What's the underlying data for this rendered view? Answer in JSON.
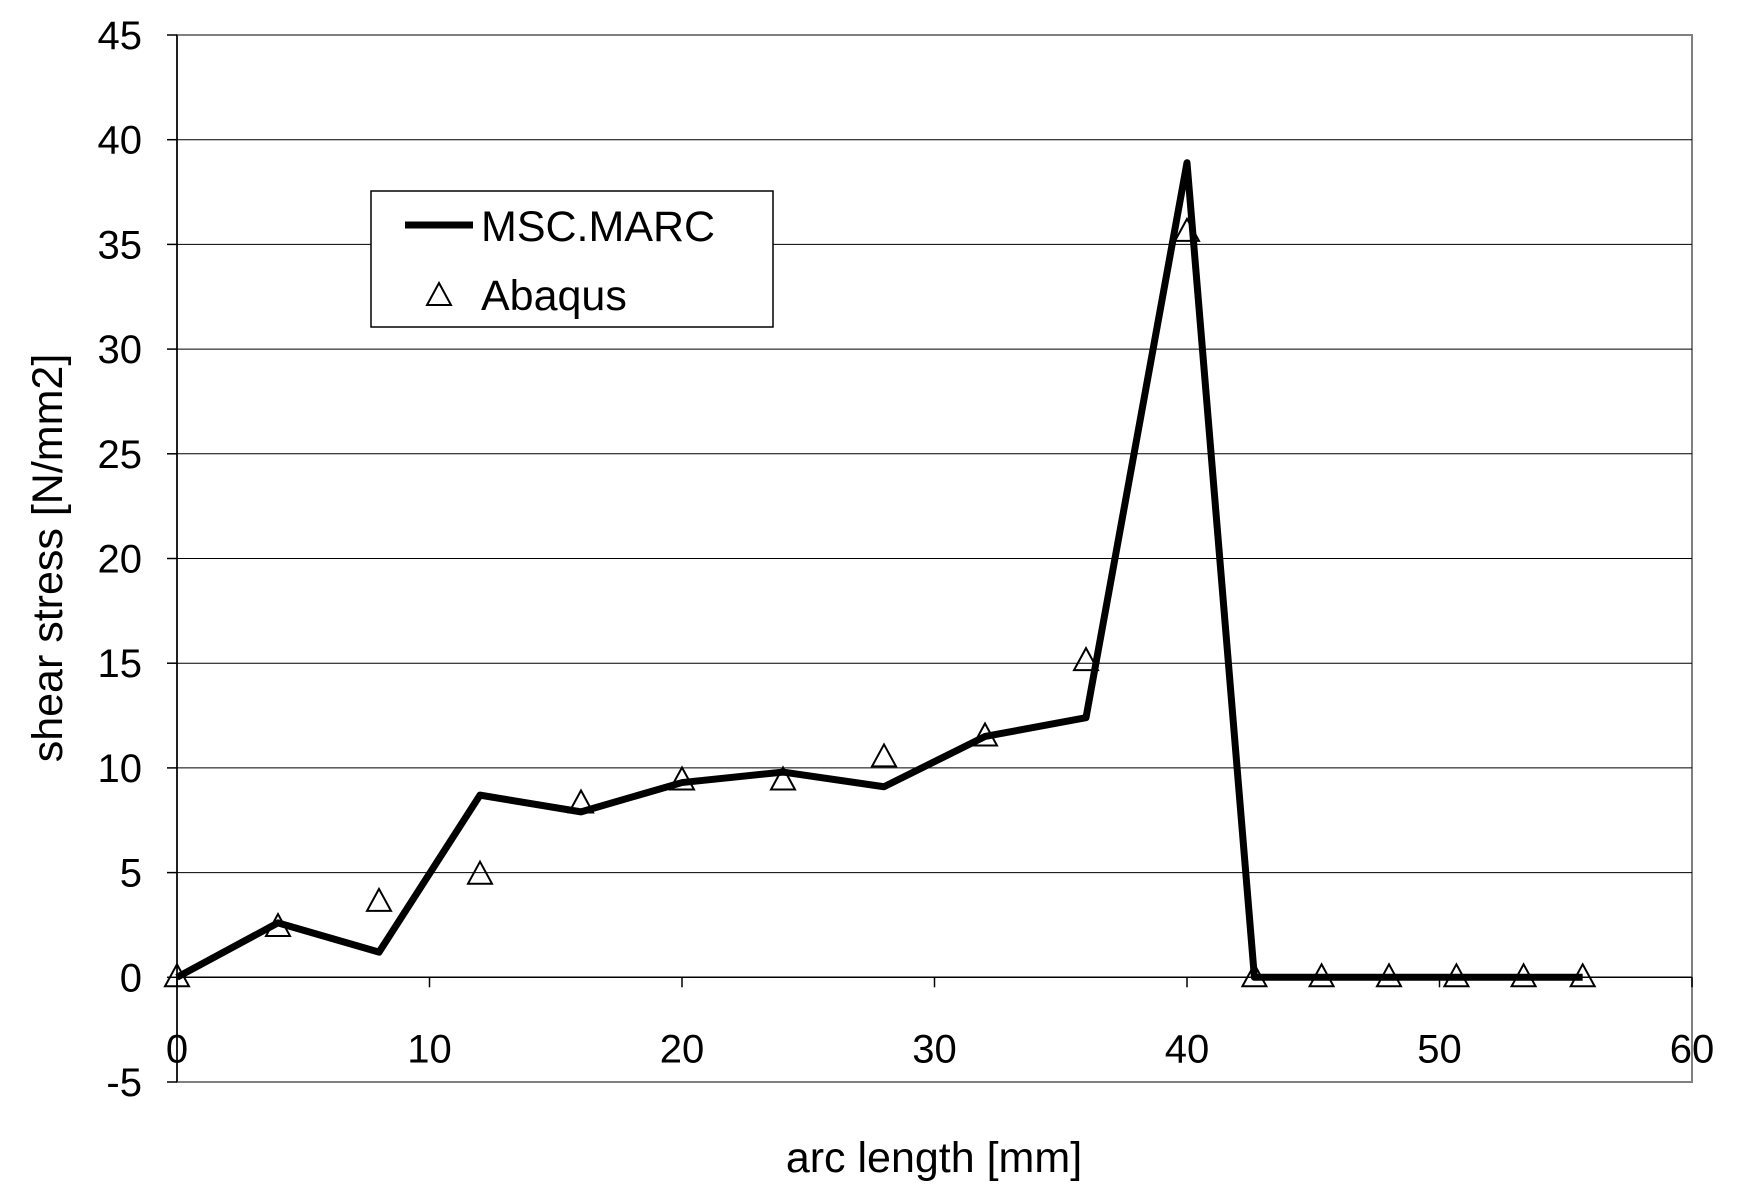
{
  "chart_data": {
    "type": "line",
    "title": "",
    "xlabel": "arc length [mm]",
    "ylabel": "shear stress [N/mm2]",
    "xlim": [
      0,
      60
    ],
    "ylim": [
      -5,
      45
    ],
    "xticks": [
      0,
      10,
      20,
      30,
      40,
      50,
      60
    ],
    "yticks": [
      -5,
      0,
      5,
      10,
      15,
      20,
      25,
      30,
      35,
      40,
      45
    ],
    "grid": "horizontal",
    "legend_position": "top-left",
    "series": [
      {
        "name": "MSC.MARC",
        "style": "line",
        "color": "#000000",
        "x": [
          0,
          4,
          8,
          12,
          16,
          20,
          24,
          28,
          32,
          36,
          40,
          42.67,
          45.33,
          48,
          50.67,
          53.33,
          55.67
        ],
        "y": [
          0,
          2.6,
          1.2,
          8.7,
          7.9,
          9.3,
          9.8,
          9.1,
          11.5,
          12.4,
          38.9,
          0,
          0,
          0,
          0,
          0,
          0
        ]
      },
      {
        "name": "Abaqus",
        "style": "open-triangle-markers",
        "color": "#000000",
        "x": [
          0,
          4,
          8,
          12,
          16,
          20,
          24,
          28,
          32,
          36,
          40,
          42.67,
          45.33,
          48,
          50.67,
          53.33,
          55.67
        ],
        "y": [
          0,
          2.4,
          3.6,
          4.9,
          8.3,
          9.4,
          9.4,
          10.5,
          11.5,
          15.1,
          35.6,
          0,
          0,
          0,
          0,
          0,
          0
        ]
      }
    ]
  }
}
